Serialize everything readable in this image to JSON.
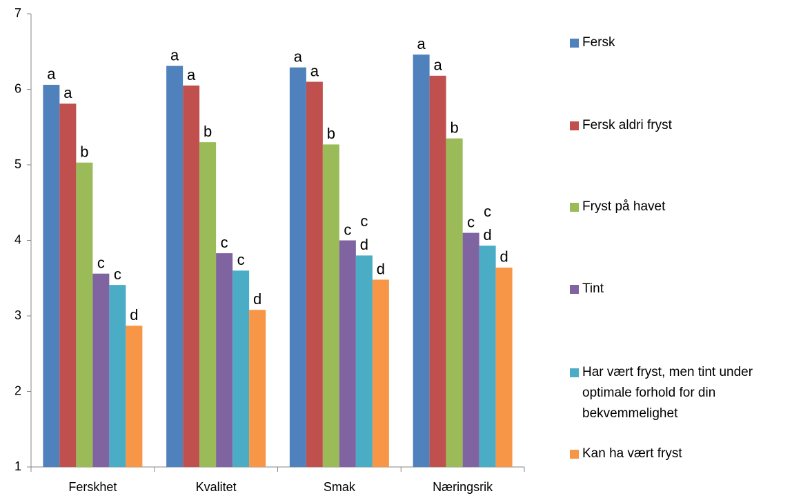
{
  "chart_data": {
    "type": "bar",
    "categories": [
      "Ferskhet",
      "Kvalitet",
      "Smak",
      "Næringsrik"
    ],
    "ylim": [
      1,
      7
    ],
    "yticks": [
      1,
      2,
      3,
      4,
      5,
      6,
      7
    ],
    "series": [
      {
        "name": "Fersk",
        "color": "#4f81bd",
        "values": [
          6.06,
          6.31,
          6.29,
          6.46
        ],
        "annotations": [
          [
            "a"
          ],
          [
            "a"
          ],
          [
            "a"
          ],
          [
            "a"
          ]
        ]
      },
      {
        "name": "Fersk aldri fryst",
        "color": "#c0504d",
        "values": [
          5.81,
          6.05,
          6.1,
          6.18
        ],
        "annotations": [
          [
            "a"
          ],
          [
            "a"
          ],
          [
            "a"
          ],
          [
            "a"
          ]
        ]
      },
      {
        "name": "Fryst på havet",
        "color": "#9bbb59",
        "values": [
          5.03,
          5.3,
          5.27,
          5.35
        ],
        "annotations": [
          [
            "b"
          ],
          [
            "b"
          ],
          [
            "b"
          ],
          [
            "b"
          ]
        ]
      },
      {
        "name": "Tint",
        "color": "#8064a2",
        "values": [
          3.56,
          3.83,
          4.0,
          4.1
        ],
        "annotations": [
          [
            "c"
          ],
          [
            "c"
          ],
          [
            "c"
          ],
          [
            "c"
          ]
        ]
      },
      {
        "name": "Har vært fryst, men tint under optimale forhold for din bekvemmelighet",
        "color": "#4bacc6",
        "values": [
          3.41,
          3.6,
          3.8,
          3.93
        ],
        "annotations": [
          [
            "c"
          ],
          [
            "c"
          ],
          [
            "c",
            "d"
          ],
          [
            "c",
            "d"
          ]
        ]
      },
      {
        "name": "Kan ha vært fryst",
        "color": "#f79646",
        "values": [
          2.87,
          3.08,
          3.48,
          3.64
        ],
        "annotations": [
          [
            "d"
          ],
          [
            "d"
          ],
          [
            "d"
          ],
          [
            "d"
          ]
        ]
      }
    ]
  }
}
